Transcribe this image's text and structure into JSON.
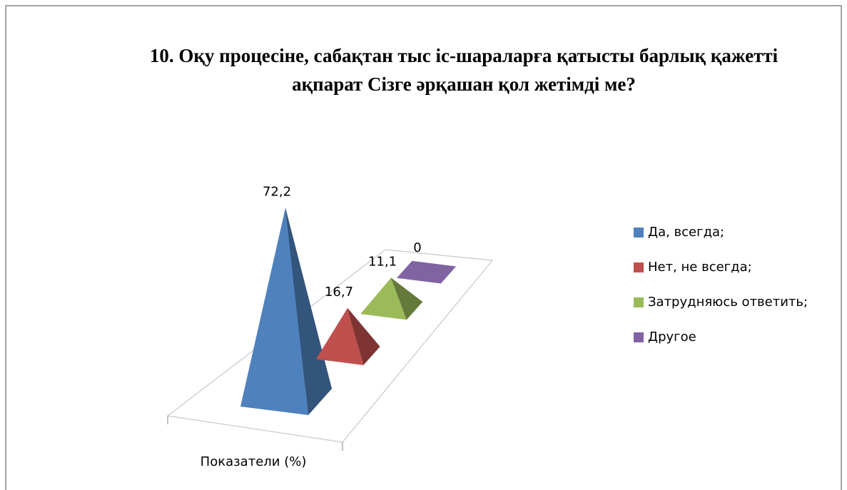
{
  "chart_data": {
    "type": "pyramid",
    "title": "10. Оқу процесіне, сабақтан тыс іс-шараларға қатысты барлық қажетті ақпарат Сізге әрқашан қол жетімді ме?",
    "categories": [
      "Показатели (%)"
    ],
    "series": [
      {
        "name": "Да, всегда;",
        "color": "#4f81bd",
        "values": [
          72.2
        ],
        "value_labels": [
          "72,2"
        ]
      },
      {
        "name": "Нет, не всегда;",
        "color": "#c0504d",
        "values": [
          16.7
        ],
        "value_labels": [
          "16,7"
        ]
      },
      {
        "name": "Затрудняюсь ответить;",
        "color": "#9bbb59",
        "values": [
          11.1
        ],
        "value_labels": [
          "11,1"
        ]
      },
      {
        "name": "Другое",
        "color": "#8064a2",
        "values": [
          0
        ],
        "value_labels": [
          "0"
        ]
      }
    ],
    "legend": "right"
  }
}
